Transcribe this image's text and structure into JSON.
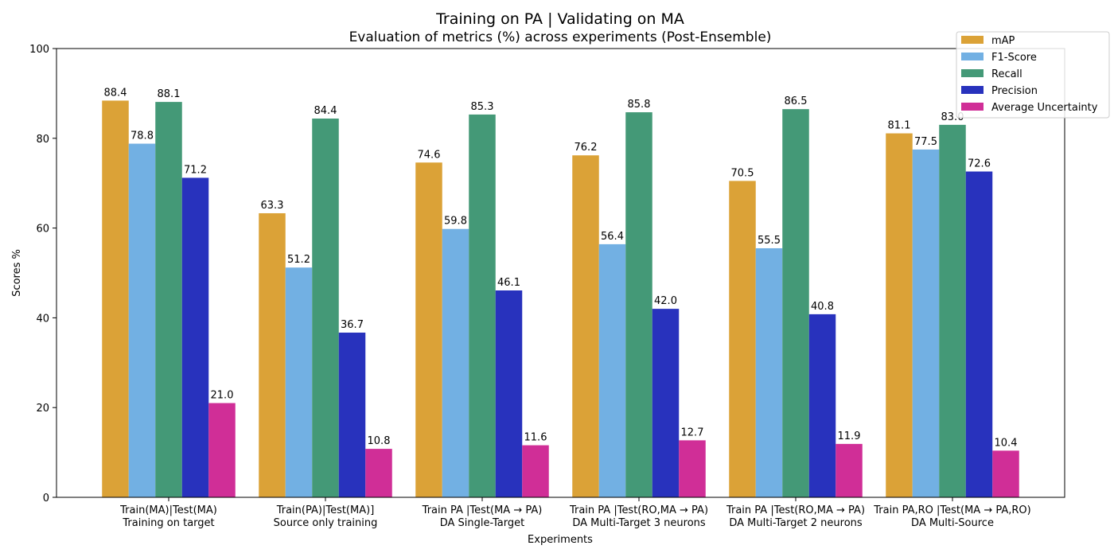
{
  "chart_data": {
    "type": "bar",
    "title": "Training on PA | Validating on MA",
    "subtitle": "Evaluation of metrics (%) across experiments (Post-Ensemble)",
    "xlabel": "Experiments",
    "ylabel": "Scores %",
    "ylim": [
      0,
      100
    ],
    "yticks": [
      0,
      20,
      40,
      60,
      80,
      100
    ],
    "grid": false,
    "legend_position": "top-right",
    "categories": [
      [
        "Train(MA)|Test(MA)",
        "Training on target"
      ],
      [
        "Train(PA)|Test(MA)]",
        "Source only training"
      ],
      [
        "Train PA |Test(MA → PA)",
        "DA Single-Target"
      ],
      [
        "Train PA |Test(RO,MA → PA)",
        "DA Multi-Target 3 neurons"
      ],
      [
        "Train PA |Test(RO,MA → PA)",
        "DA Multi-Target 2 neurons"
      ],
      [
        "Train PA,RO |Test(MA → PA,RO)",
        "DA Multi-Source"
      ]
    ],
    "series": [
      {
        "name": "mAP",
        "color": "#DBA237",
        "values": [
          88.4,
          63.3,
          74.6,
          76.2,
          70.5,
          81.1
        ]
      },
      {
        "name": "F1-Score",
        "color": "#72B0E3",
        "values": [
          78.8,
          51.2,
          59.8,
          56.4,
          55.5,
          77.5
        ]
      },
      {
        "name": "Recall",
        "color": "#449977",
        "values": [
          88.1,
          84.4,
          85.3,
          85.8,
          86.5,
          83.0
        ]
      },
      {
        "name": "Precision",
        "color": "#2832BD",
        "values": [
          71.2,
          36.7,
          46.1,
          42.0,
          40.8,
          72.6
        ]
      },
      {
        "name": "Average Uncertainty",
        "color": "#D02E97",
        "values": [
          21.0,
          10.8,
          11.6,
          12.7,
          11.9,
          10.4
        ]
      }
    ]
  }
}
